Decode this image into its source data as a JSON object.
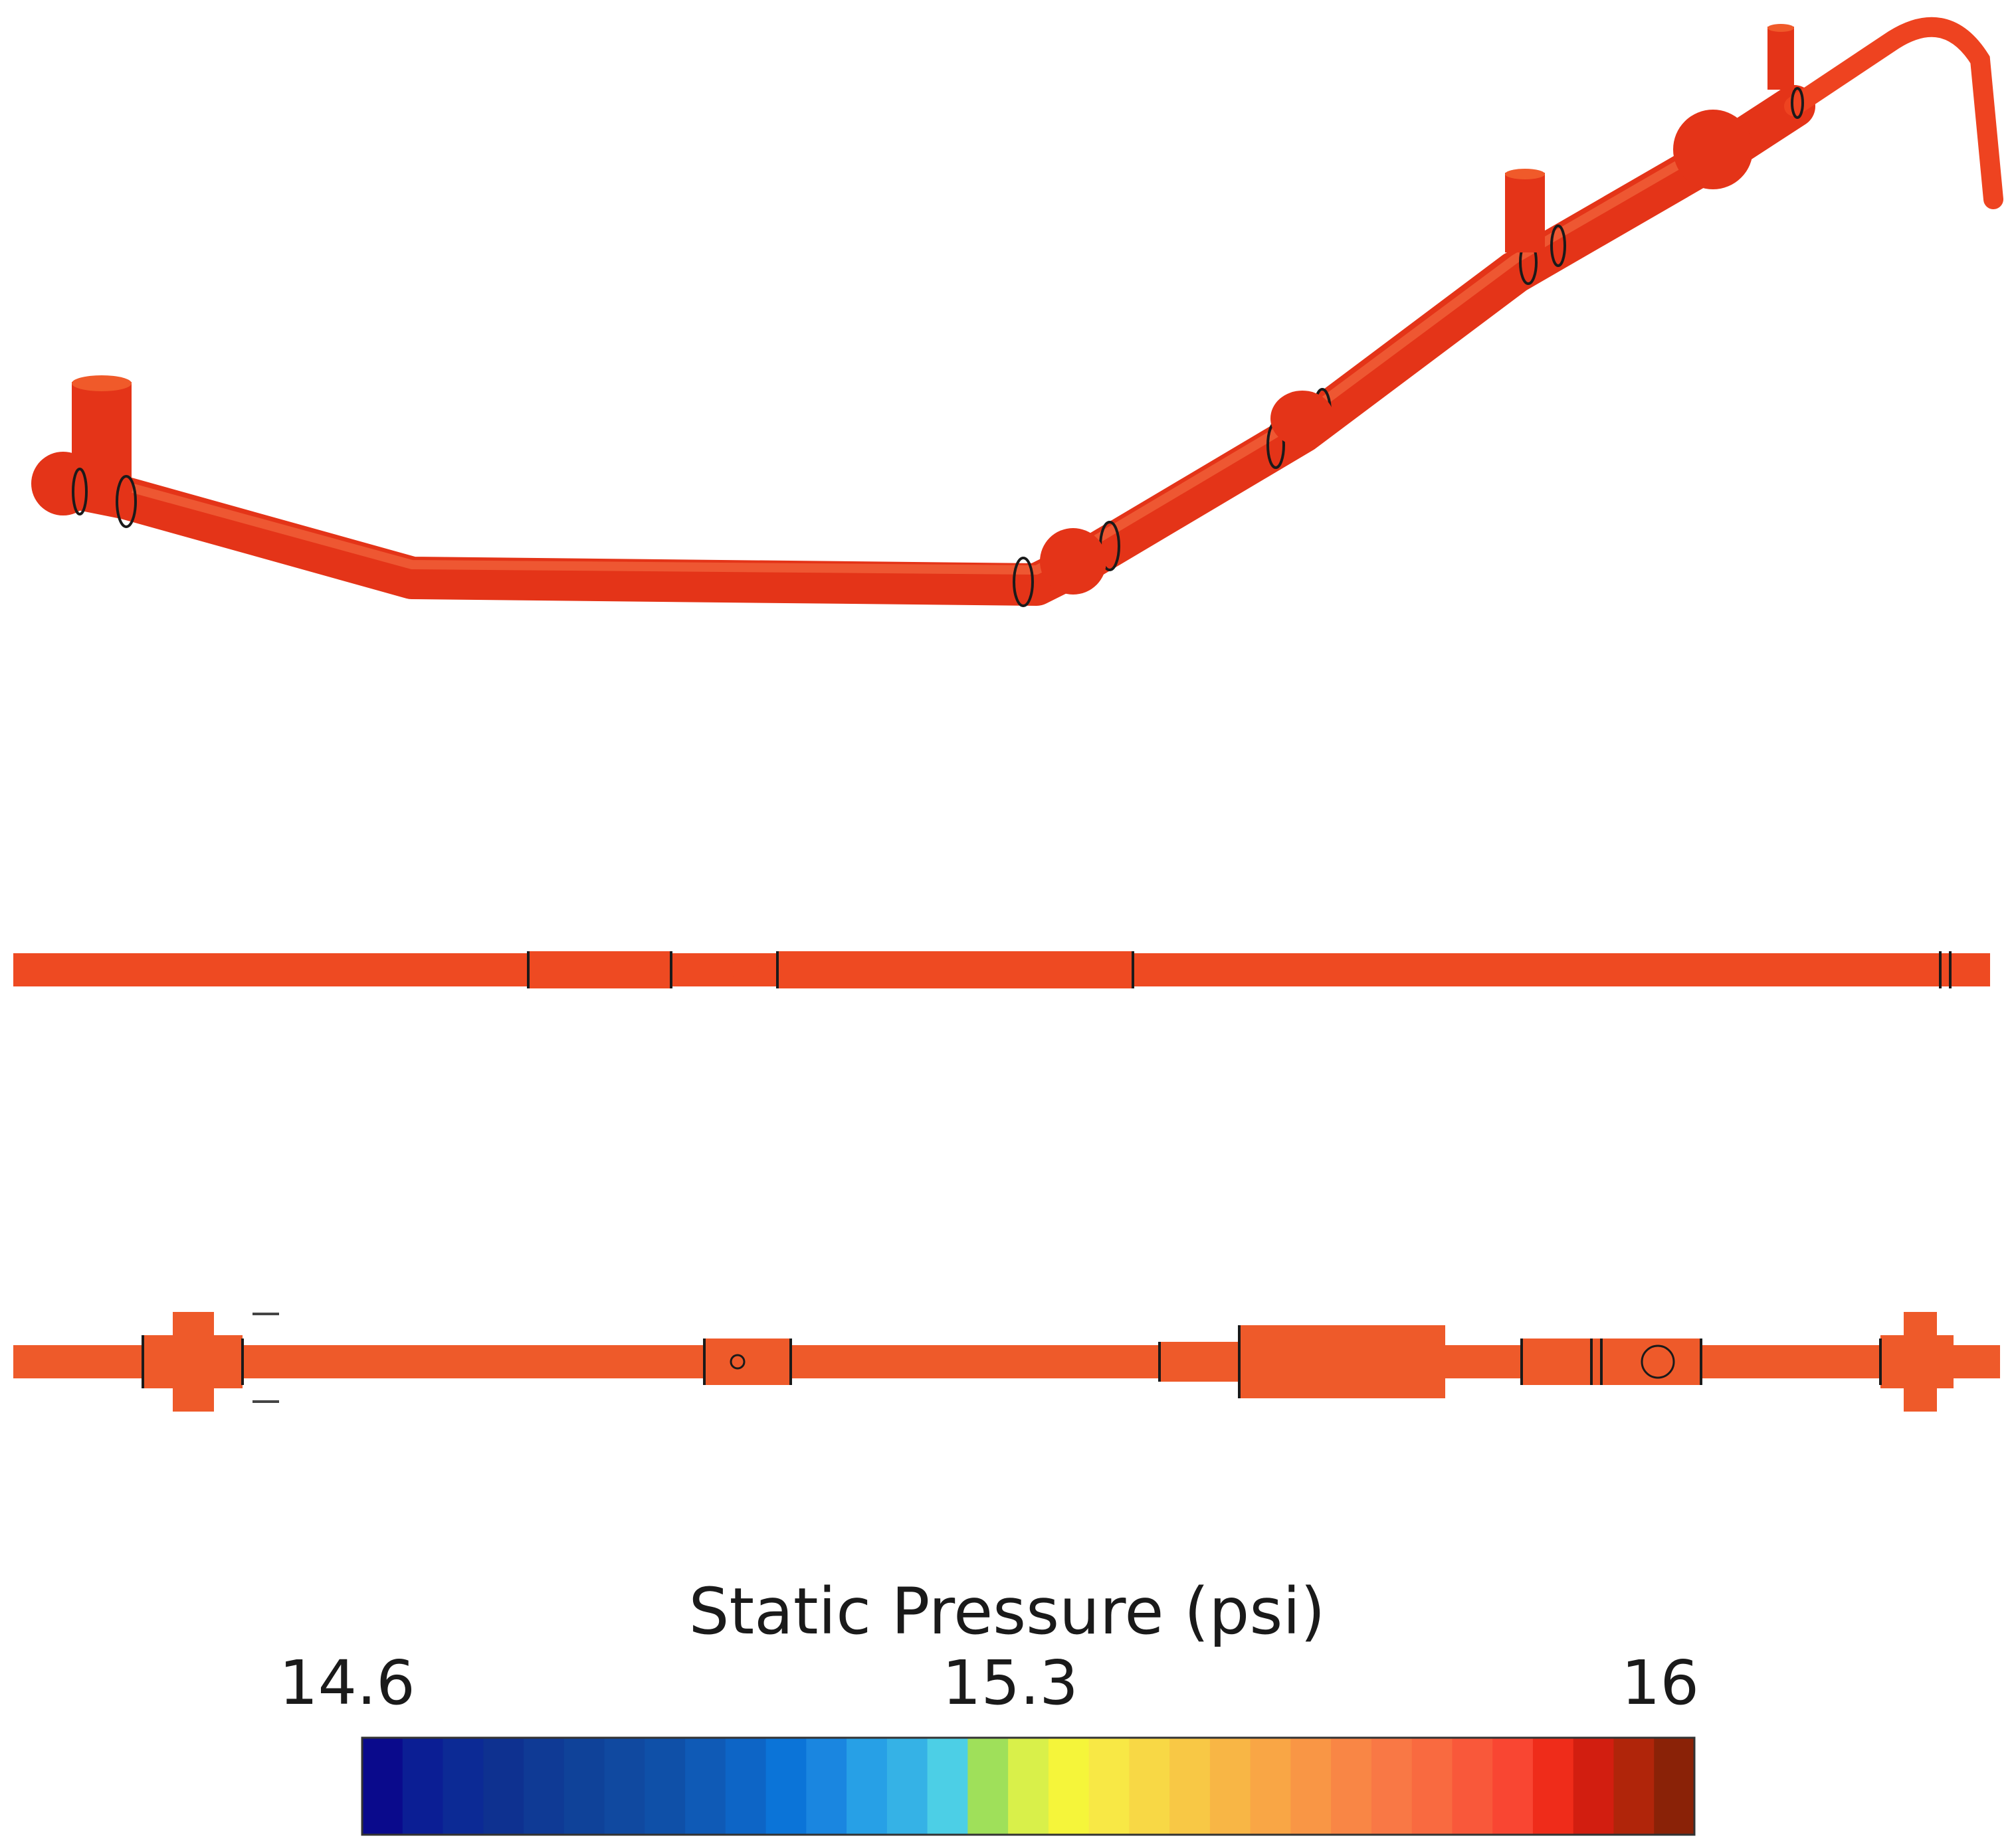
{
  "diagram": {
    "views": [
      "isometric-view",
      "side-view",
      "top-view"
    ],
    "pipe_color": "#ee3d1c",
    "pipe_color_lower": "#f0582a"
  },
  "legend": {
    "title": "Static Pressure (psi)",
    "min_label": "14.6",
    "mid_label": "15.3",
    "max_label": "16",
    "min": 14.6,
    "max": 16,
    "colors": [
      "#0a0a8c",
      "#0b1e94",
      "#0c2a95",
      "#0e3190",
      "#0f3a95",
      "#0f4299",
      "#1049a0",
      "#0f50a8",
      "#0f5ab6",
      "#0d65c6",
      "#0b74d8",
      "#1a86e0",
      "#27a0e6",
      "#35b2e6",
      "#4ccfe6",
      "#9fe05a",
      "#d9f04a",
      "#f5f53a",
      "#f8e845",
      "#f8d845",
      "#f8c845",
      "#f8b645",
      "#f9a645",
      "#f99645",
      "#f98645",
      "#f97845",
      "#f96a40",
      "#f9583a",
      "#f94632",
      "#ef2c1a",
      "#d21e10",
      "#b0250a",
      "#8a2207"
    ]
  }
}
